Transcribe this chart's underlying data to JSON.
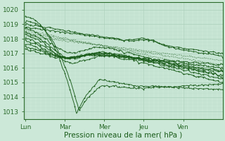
{
  "xlabel": "Pression niveau de la mer( hPa )",
  "ylim": [
    1012.5,
    1020.5
  ],
  "yticks": [
    1013,
    1014,
    1015,
    1016,
    1017,
    1018,
    1019,
    1020
  ],
  "day_labels": [
    "Lun",
    "Mar",
    "Mer",
    "Jeu",
    "Ven"
  ],
  "day_positions": [
    0,
    48,
    96,
    144,
    192
  ],
  "total_points": 241,
  "bg_color": "#cce8d8",
  "grid_color_major": "#aacfba",
  "grid_color_minor": "#bbddc9",
  "line_color": "#1a5c1a",
  "line_width": 0.7,
  "marker": "+",
  "marker_size": 2.0,
  "axis_color": "#2a6a2a",
  "tick_color": "#2a6a2a",
  "label_color": "#1a5c1a",
  "font_size_tick": 6.5,
  "font_size_label": 7.5
}
